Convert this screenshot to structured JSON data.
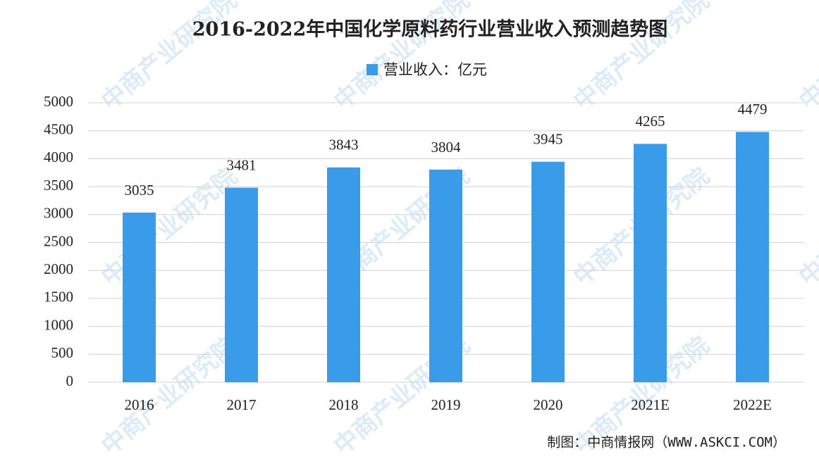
{
  "chart_data": {
    "type": "bar",
    "title": "2016-2022年中国化学原料药行业营业收入预测趋势图",
    "categories": [
      "2016",
      "2017",
      "2018",
      "2019",
      "2020",
      "2021E",
      "2022E"
    ],
    "series": [
      {
        "name": "营业收入：亿元",
        "color": "#3a9be8",
        "values": [
          3035,
          3481,
          3843,
          3804,
          3945,
          4265,
          4479
        ]
      }
    ],
    "ylim": [
      0,
      5000
    ],
    "yticks": [
      0,
      500,
      1000,
      1500,
      2000,
      2500,
      3000,
      3500,
      4000,
      4500,
      5000
    ],
    "grid": true,
    "legend": "top",
    "source": "制图：中商情报网（WWW.ASKCI.COM）",
    "watermark": "中商产业研究院"
  }
}
